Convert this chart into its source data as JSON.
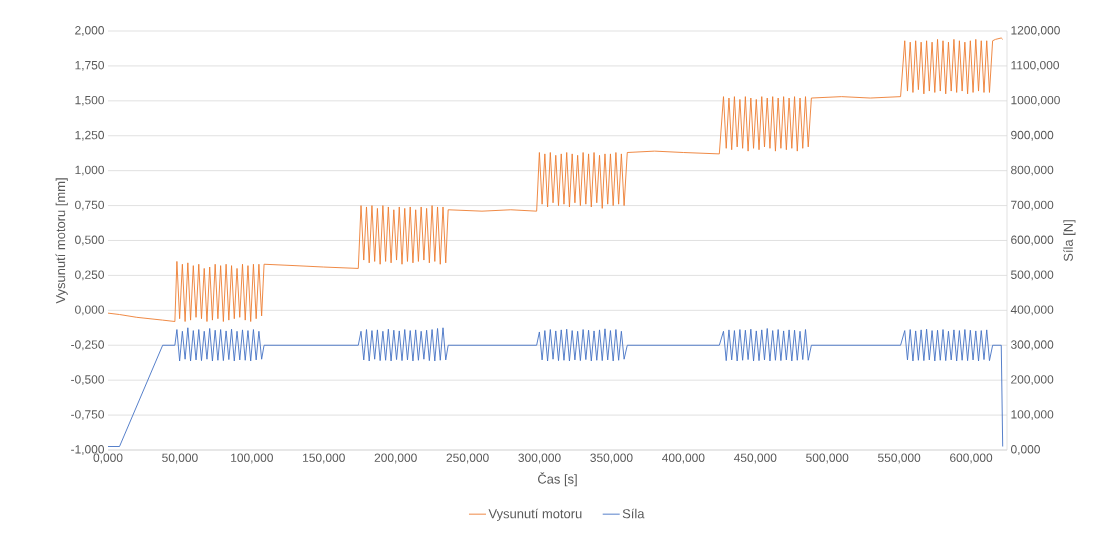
{
  "chart_data": {
    "type": "line",
    "xlabel": "Čas [s]",
    "ylabel": "Vysunutí motoru [mm]",
    "y2label": "Síla [N]",
    "x": [
      0,
      8,
      20,
      38,
      46.5,
      47.9,
      49.8,
      51.7,
      53.6,
      55.5,
      57.4,
      59.3,
      61.2,
      63.1,
      65.0,
      66.9,
      68.8,
      70.7,
      72.6,
      74.5,
      76.4,
      78.3,
      80.2,
      82.1,
      84.0,
      85.9,
      87.8,
      89.7,
      91.6,
      93.5,
      95.4,
      97.3,
      99.2,
      101.1,
      103.0,
      104.9,
      106.8,
      108.5,
      130,
      150,
      174,
      175.9,
      177.8,
      179.7,
      181.6,
      183.5,
      185.4,
      187.3,
      189.2,
      191.1,
      193.0,
      194.9,
      196.8,
      198.7,
      200.6,
      202.5,
      204.4,
      206.3,
      208.2,
      210.1,
      212.0,
      213.9,
      215.8,
      217.7,
      219.6,
      221.5,
      223.4,
      225.3,
      227.2,
      229.1,
      231.0,
      232.9,
      234.8,
      236.5,
      260,
      280,
      298,
      299.9,
      301.8,
      303.7,
      305.6,
      307.5,
      309.4,
      311.3,
      313.2,
      315.1,
      317.0,
      318.9,
      320.8,
      322.7,
      324.6,
      326.5,
      328.4,
      330.3,
      332.2,
      334.1,
      336.0,
      337.9,
      339.8,
      341.7,
      343.6,
      345.5,
      347.4,
      349.3,
      351.2,
      353.1,
      355.0,
      356.9,
      358.8,
      361,
      380,
      400,
      425,
      427.9,
      429.8,
      431.7,
      433.6,
      435.5,
      437.4,
      439.3,
      441.2,
      443.1,
      445.0,
      446.9,
      448.8,
      450.7,
      452.6,
      454.5,
      456.4,
      458.3,
      460.2,
      462.1,
      464.0,
      465.9,
      467.8,
      469.7,
      471.6,
      473.5,
      475.4,
      477.3,
      479.2,
      481.1,
      483.0,
      484.9,
      486.8,
      489,
      510,
      530,
      551,
      553.9,
      555.8,
      557.7,
      559.6,
      561.5,
      563.4,
      565.3,
      567.2,
      569.1,
      571.0,
      572.9,
      574.8,
      576.7,
      578.6,
      580.5,
      582.4,
      584.3,
      586.2,
      588.1,
      590.0,
      591.9,
      593.8,
      595.7,
      597.6,
      599.5,
      601.4,
      603.3,
      605.2,
      607.1,
      609.0,
      610.9,
      612.8,
      615,
      617,
      621,
      622
    ],
    "series": [
      {
        "name": "Vysunutí motoru",
        "color": "#ed7d31",
        "values": [
          -0.02,
          -0.03,
          -0.05,
          -0.07,
          -0.08,
          0.35,
          -0.06,
          0.33,
          -0.08,
          0.34,
          -0.07,
          0.32,
          -0.05,
          0.33,
          -0.06,
          0.3,
          -0.08,
          0.31,
          -0.07,
          0.33,
          -0.06,
          0.32,
          -0.08,
          0.33,
          -0.07,
          0.32,
          -0.06,
          0.3,
          -0.05,
          0.33,
          -0.07,
          0.32,
          -0.08,
          0.33,
          -0.06,
          0.33,
          -0.04,
          0.33,
          0.32,
          0.31,
          0.3,
          0.75,
          0.36,
          0.74,
          0.34,
          0.75,
          0.35,
          0.73,
          0.33,
          0.75,
          0.35,
          0.74,
          0.34,
          0.72,
          0.36,
          0.74,
          0.33,
          0.73,
          0.35,
          0.74,
          0.34,
          0.72,
          0.35,
          0.74,
          0.36,
          0.73,
          0.34,
          0.75,
          0.35,
          0.74,
          0.33,
          0.74,
          0.34,
          0.72,
          0.71,
          0.72,
          0.71,
          1.13,
          0.76,
          1.12,
          0.74,
          1.13,
          0.77,
          1.11,
          0.75,
          1.12,
          0.76,
          1.13,
          0.74,
          1.12,
          0.77,
          1.11,
          0.75,
          1.13,
          0.76,
          1.12,
          0.74,
          1.13,
          0.77,
          1.11,
          0.73,
          1.12,
          0.76,
          1.12,
          0.75,
          1.13,
          0.76,
          1.12,
          0.75,
          1.13,
          1.14,
          1.13,
          1.12,
          1.53,
          1.16,
          1.52,
          1.15,
          1.53,
          1.17,
          1.51,
          1.16,
          1.53,
          1.14,
          1.52,
          1.16,
          1.51,
          1.15,
          1.53,
          1.17,
          1.52,
          1.16,
          1.53,
          1.14,
          1.52,
          1.16,
          1.53,
          1.15,
          1.52,
          1.16,
          1.53,
          1.14,
          1.52,
          1.16,
          1.53,
          1.17,
          1.52,
          1.53,
          1.52,
          1.53,
          1.93,
          1.57,
          1.92,
          1.56,
          1.93,
          1.58,
          1.92,
          1.55,
          1.93,
          1.57,
          1.92,
          1.56,
          1.94,
          1.57,
          1.93,
          1.55,
          1.92,
          1.57,
          1.94,
          1.56,
          1.93,
          1.57,
          1.92,
          1.55,
          1.93,
          1.56,
          1.94,
          1.57,
          1.93,
          1.56,
          1.93,
          1.56,
          1.93,
          1.94,
          1.95,
          1.94
        ]
      },
      {
        "name": "Síla",
        "color": "#4472c4",
        "axis": "y2",
        "values": [
          10,
          10,
          126,
          300,
          300,
          345,
          255,
          340,
          260,
          350,
          255,
          342,
          258,
          345,
          256,
          340,
          260,
          348,
          255,
          343,
          257,
          345,
          256,
          341,
          259,
          346,
          255,
          340,
          258,
          344,
          257,
          342,
          255,
          345,
          258,
          340,
          260,
          300,
          300,
          300,
          300,
          340,
          258,
          345,
          255,
          342,
          260,
          344,
          256,
          340,
          257,
          346,
          255,
          343,
          259,
          341,
          256,
          345,
          258,
          342,
          255,
          344,
          257,
          340,
          260,
          343,
          256,
          345,
          255,
          348,
          257,
          350,
          258,
          300,
          300,
          300,
          300,
          338,
          258,
          342,
          255,
          345,
          260,
          341,
          256,
          344,
          257,
          346,
          255,
          342,
          258,
          340,
          256,
          345,
          259,
          343,
          255,
          341,
          257,
          344,
          256,
          347,
          258,
          342,
          255,
          345,
          257,
          340,
          260,
          300,
          300,
          300,
          300,
          340,
          256,
          344,
          258,
          342,
          255,
          345,
          257,
          343,
          259,
          346,
          255,
          341,
          256,
          344,
          258,
          348,
          255,
          342,
          257,
          345,
          256,
          341,
          258,
          344,
          255,
          343,
          257,
          340,
          259,
          345,
          257,
          300,
          300,
          300,
          300,
          342,
          258,
          345,
          255,
          341,
          257,
          344,
          256,
          346,
          258,
          342,
          255,
          343,
          257,
          345,
          256,
          340,
          258,
          344,
          255,
          342,
          257,
          345,
          256,
          343,
          258,
          341,
          255,
          342,
          259,
          344,
          256,
          300,
          300,
          300,
          10
        ]
      }
    ],
    "xlim": [
      0,
      625
    ],
    "ylim": [
      -1,
      2
    ],
    "y2lim": [
      0,
      1200
    ],
    "xticks": [
      {
        "value": 0,
        "label": "0,000"
      },
      {
        "value": 50,
        "label": "50,000"
      },
      {
        "value": 100,
        "label": "100,000"
      },
      {
        "value": 150,
        "label": "150,000"
      },
      {
        "value": 200,
        "label": "200,000"
      },
      {
        "value": 250,
        "label": "250,000"
      },
      {
        "value": 300,
        "label": "300,000"
      },
      {
        "value": 350,
        "label": "350,000"
      },
      {
        "value": 400,
        "label": "400,000"
      },
      {
        "value": 450,
        "label": "450,000"
      },
      {
        "value": 500,
        "label": "500,000"
      },
      {
        "value": 550,
        "label": "550,000"
      },
      {
        "value": 600,
        "label": "600,000"
      }
    ],
    "yticks": [
      {
        "value": -1,
        "label": "-1,000"
      },
      {
        "value": -0.75,
        "label": "-0,750"
      },
      {
        "value": -0.5,
        "label": "-0,500"
      },
      {
        "value": -0.25,
        "label": "-0,250"
      },
      {
        "value": 0,
        "label": "0,000"
      },
      {
        "value": 0.25,
        "label": "0,250"
      },
      {
        "value": 0.5,
        "label": "0,500"
      },
      {
        "value": 0.75,
        "label": "0,750"
      },
      {
        "value": 1,
        "label": "1,000"
      },
      {
        "value": 1.25,
        "label": "1,250"
      },
      {
        "value": 1.5,
        "label": "1,500"
      },
      {
        "value": 1.75,
        "label": "1,750"
      },
      {
        "value": 2,
        "label": "2,000"
      }
    ],
    "y2ticks": [
      {
        "value": 0,
        "label": "0,000"
      },
      {
        "value": 100,
        "label": "100,000"
      },
      {
        "value": 200,
        "label": "200,000"
      },
      {
        "value": 300,
        "label": "300,000"
      },
      {
        "value": 400,
        "label": "400,000"
      },
      {
        "value": 500,
        "label": "500,000"
      },
      {
        "value": 600,
        "label": "600,000"
      },
      {
        "value": 700,
        "label": "700,000"
      },
      {
        "value": 800,
        "label": "800,000"
      },
      {
        "value": 900,
        "label": "900,000"
      },
      {
        "value": 1000,
        "label": "1000,000"
      },
      {
        "value": 1100,
        "label": "1100,000"
      },
      {
        "value": 1200,
        "label": "1200,000"
      }
    ],
    "grid": "y",
    "legend": "bottom"
  }
}
